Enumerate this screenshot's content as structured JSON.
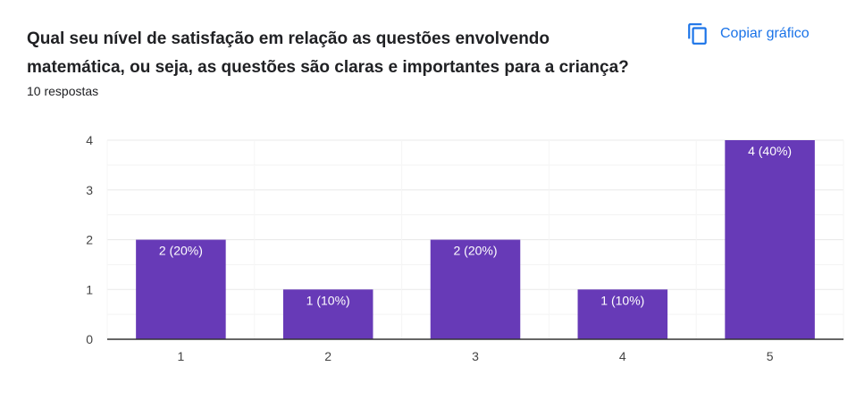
{
  "question": {
    "title": "Qual seu nível de satisfação em relação as questões envolvendo matemática, ou seja, as questões são claras e importantes para a criança?",
    "responses": "10 respostas"
  },
  "actions": {
    "copy_label": "Copiar gráfico",
    "copy_icon": "copy-icon"
  },
  "colors": {
    "bar": "#673ab7",
    "grid": "#e8e8e8",
    "axis": "#333333",
    "accent": "#1a73e8"
  },
  "chart_data": {
    "type": "bar",
    "categories": [
      "1",
      "2",
      "3",
      "4",
      "5"
    ],
    "values": [
      2,
      1,
      2,
      1,
      4
    ],
    "labels": [
      "2 (20%)",
      "1 (10%)",
      "2 (20%)",
      "1 (10%)",
      "4 (40%)"
    ],
    "y_ticks": [
      "0",
      "1",
      "2",
      "3",
      "4"
    ],
    "ylim": [
      0,
      4
    ],
    "title": "",
    "xlabel": "",
    "ylabel": "",
    "grid": true,
    "legend": "none"
  }
}
